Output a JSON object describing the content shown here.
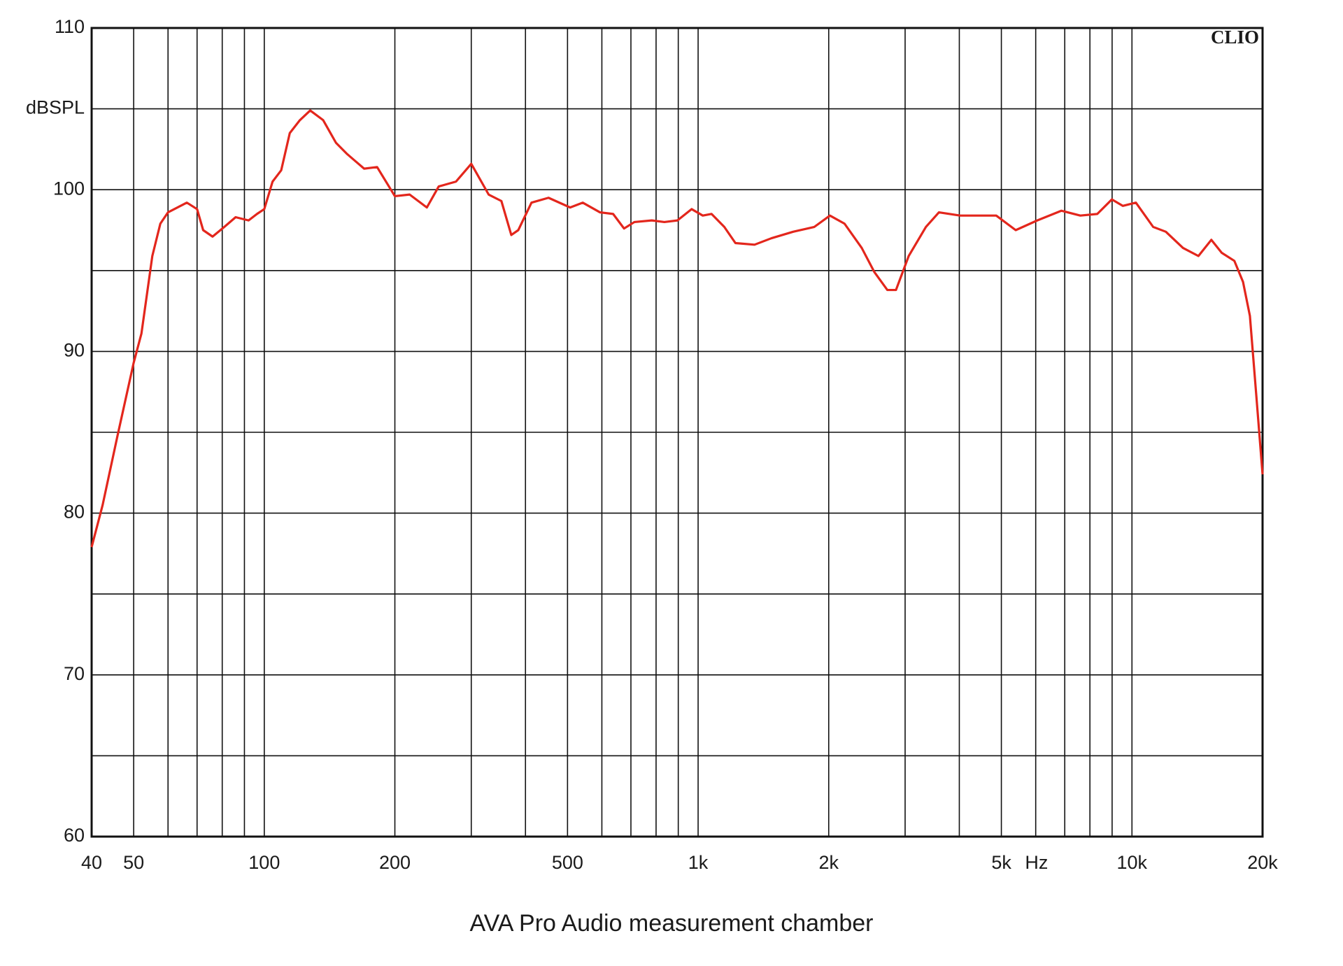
{
  "chart_data": {
    "type": "line",
    "title": "AVA Pro Audio measurement chamber",
    "y_unit_label": "dBSPL",
    "x_unit_label": "Hz",
    "watermark": "CLIO",
    "x_log": true,
    "grid": true,
    "color": "#e3261c",
    "xlim": [
      40,
      20000
    ],
    "ylim": [
      60,
      110
    ],
    "xticks": [
      40,
      50,
      100,
      200,
      500,
      {
        "value": 1000,
        "label": "1k"
      },
      {
        "value": 2000,
        "label": "2k"
      },
      {
        "value": 5000,
        "label": "5k"
      },
      {
        "value": 10000,
        "label": "10k"
      },
      {
        "value": 20000,
        "label": "20k"
      }
    ],
    "x_minor_grid": [
      60,
      70,
      80,
      90,
      300,
      400,
      600,
      700,
      800,
      900,
      3000,
      4000,
      6000,
      7000,
      8000,
      9000
    ],
    "yticks": [
      60,
      70,
      80,
      90,
      100,
      110
    ],
    "y_minor_grid": [
      65,
      75,
      85,
      95,
      105
    ],
    "x": [
      40,
      42.4,
      45.9,
      50,
      52.1,
      55.2,
      57.6,
      60,
      66.3,
      70,
      72.3,
      76,
      80.9,
      85.9,
      92,
      96.2,
      100,
      104.5,
      109.4,
      114.5,
      120.8,
      127.6,
      136.7,
      146.3,
      155.3,
      169.9,
      182,
      200,
      216.3,
      237,
      252.4,
      276.6,
      300,
      329,
      352,
      371,
      385,
      413,
      452,
      507,
      542,
      594,
      637,
      675,
      713,
      782,
      836,
      896,
      966,
      1025,
      1074,
      1149,
      1219,
      1349,
      1476,
      1656,
      1853,
      2013,
      2175,
      2383,
      2549,
      2730,
      2858,
      3058,
      3350,
      3590,
      4018,
      4405,
      4866,
      5396,
      6050,
      6876,
      7602,
      8319,
      8990,
      9530,
      10210,
      11190,
      11970,
      13110,
      14230,
      15240,
      16100,
      17220,
      18030,
      18700,
      19330,
      20000
    ],
    "values": [
      77.9,
      80.5,
      84.8,
      89.3,
      91.1,
      95.9,
      97.9,
      98.6,
      99.2,
      98.8,
      97.5,
      97.1,
      97.7,
      98.3,
      98.1,
      98.5,
      98.8,
      100.5,
      101.2,
      103.5,
      104.3,
      104.9,
      104.3,
      102.9,
      102.2,
      101.3,
      101.4,
      99.6,
      99.7,
      98.9,
      100.2,
      100.5,
      101.6,
      99.7,
      99.3,
      97.2,
      97.5,
      99.2,
      99.5,
      98.9,
      99.2,
      98.6,
      98.5,
      97.6,
      98.0,
      98.1,
      98.0,
      98.1,
      98.8,
      98.4,
      98.5,
      97.7,
      96.7,
      96.6,
      97.0,
      97.4,
      97.7,
      98.4,
      97.9,
      96.4,
      94.9,
      93.8,
      93.8,
      95.9,
      97.7,
      98.6,
      98.4,
      98.4,
      98.4,
      97.5,
      98.1,
      98.7,
      98.4,
      98.5,
      99.4,
      99.0,
      99.2,
      97.7,
      97.4,
      96.4,
      95.9,
      96.9,
      96.1,
      95.6,
      94.3,
      92.2,
      87.4,
      82.4
    ]
  }
}
